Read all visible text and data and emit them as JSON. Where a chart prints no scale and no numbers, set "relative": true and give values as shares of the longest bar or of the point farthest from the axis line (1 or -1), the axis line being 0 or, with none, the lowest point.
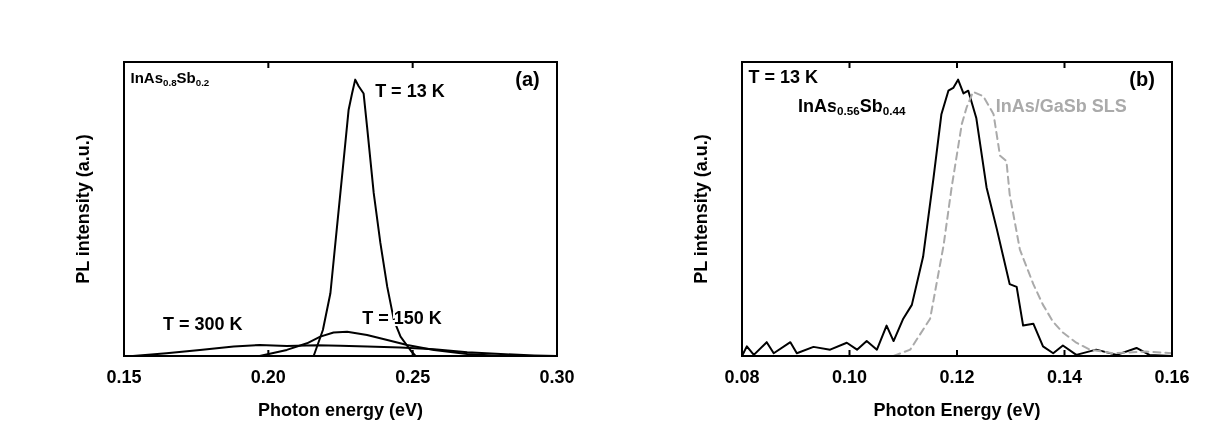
{
  "chart_data": [
    {
      "type": "line",
      "relative": true,
      "xlabel": "Photon energy (eV)",
      "ylabel": "PL intensity (a.u.)",
      "annotations": [
        "InAs$_{0.8}$Sb$_{0.2}$",
        "(a)"
      ],
      "xlim": [
        0.15,
        0.3
      ],
      "xticks": [
        0.15,
        {
          "value": 0.2,
          "label": "0.20"
        },
        0.25,
        {
          "value": 0.3,
          "label": "0.30"
        }
      ],
      "line_style": "solid",
      "series": [
        {
          "name": "T = 13 K",
          "color": "#000000",
          "x": [
            0.2157,
            0.2189,
            0.2215,
            0.2238,
            0.2261,
            0.2278,
            0.229,
            0.2301,
            0.2313,
            0.233,
            0.2342,
            0.2365,
            0.2388,
            0.2412,
            0.2435,
            0.2458,
            0.2493,
            0.251
          ],
          "values": [
            0,
            0.094,
            0.227,
            0.469,
            0.71,
            0.89,
            0.95,
            1.0,
            0.976,
            0.95,
            0.83,
            0.59,
            0.41,
            0.25,
            0.13,
            0.07,
            0.02,
            0
          ]
        },
        {
          "name": "T = 150 K",
          "color": "#000000",
          "x": [
            0.197,
            0.2064,
            0.2134,
            0.218,
            0.2226,
            0.2273,
            0.2342,
            0.2412,
            0.2481,
            0.2574,
            0.2689,
            0.2805
          ],
          "values": [
            0,
            0.022,
            0.046,
            0.07,
            0.085,
            0.088,
            0.076,
            0.058,
            0.04,
            0.022,
            0.007,
            0
          ]
        },
        {
          "name": "T = 300 K",
          "color": "#000000",
          "x": [
            0.1531,
            0.1647,
            0.1763,
            0.188,
            0.197,
            0.2064,
            0.2168,
            0.2249,
            0.2342,
            0.2458,
            0.2574,
            0.2689,
            0.2805,
            0.2921,
            0.3
          ],
          "values": [
            0,
            0.01,
            0.022,
            0.034,
            0.04,
            0.036,
            0.039,
            0.037,
            0.034,
            0.031,
            0.024,
            0.014,
            0.007,
            0.002,
            0
          ]
        }
      ]
    },
    {
      "type": "line",
      "relative": true,
      "xlabel": "Photon Energy (eV)",
      "ylabel": "PL intensity (a.u.)",
      "annotations": [
        "T = 13 K",
        "(b)"
      ],
      "xlim": [
        0.08,
        0.16
      ],
      "xticks": [
        {
          "value": 0.08,
          "label": "0.08"
        },
        {
          "value": 0.1,
          "label": "0.10"
        },
        0.12,
        0.14,
        0.16
      ],
      "series": [
        {
          "name": "InAs$_{0.56}$Sb$_{0.44}$",
          "color": "#000000",
          "line_style": "solid",
          "x": [
            0.08,
            0.0809,
            0.0822,
            0.0846,
            0.0859,
            0.089,
            0.0902,
            0.0933,
            0.0964,
            0.0995,
            0.1014,
            0.1032,
            0.1051,
            0.1069,
            0.1082,
            0.11,
            0.1116,
            0.1137,
            0.1156,
            0.1171,
            0.1184,
            0.1193,
            0.1202,
            0.1212,
            0.1221,
            0.1236,
            0.1255,
            0.1274,
            0.1298,
            0.1311,
            0.1323,
            0.1342,
            0.136,
            0.1379,
            0.1397,
            0.1422,
            0.1459,
            0.1497,
            0.1534,
            0.1558,
            0.16
          ],
          "values": [
            0,
            0.035,
            0.004,
            0.05,
            0.01,
            0.05,
            0.01,
            0.033,
            0.023,
            0.048,
            0.023,
            0.054,
            0.023,
            0.11,
            0.054,
            0.135,
            0.185,
            0.36,
            0.64,
            0.875,
            0.96,
            0.97,
            1.0,
            0.95,
            0.96,
            0.86,
            0.61,
            0.46,
            0.26,
            0.25,
            0.11,
            0.117,
            0.035,
            0.01,
            0.038,
            0.004,
            0.023,
            0.004,
            0.029,
            0.004,
            0
          ]
        },
        {
          "name": "InAs/GaSb SLS",
          "color": "#aaaaaa",
          "line_style": "dashed",
          "x": [
            0.1082,
            0.1113,
            0.115,
            0.1175,
            0.119,
            0.1209,
            0.1218,
            0.123,
            0.1249,
            0.1268,
            0.128,
            0.1292,
            0.1298,
            0.1317,
            0.1342,
            0.136,
            0.1379,
            0.1397,
            0.1422,
            0.1447,
            0.149,
            0.1552,
            0.16
          ],
          "values": [
            0,
            0.023,
            0.135,
            0.4,
            0.61,
            0.84,
            0.9,
            0.956,
            0.94,
            0.875,
            0.725,
            0.705,
            0.585,
            0.385,
            0.26,
            0.185,
            0.123,
            0.085,
            0.048,
            0.023,
            0.01,
            0.016,
            0.01
          ]
        }
      ]
    }
  ]
}
